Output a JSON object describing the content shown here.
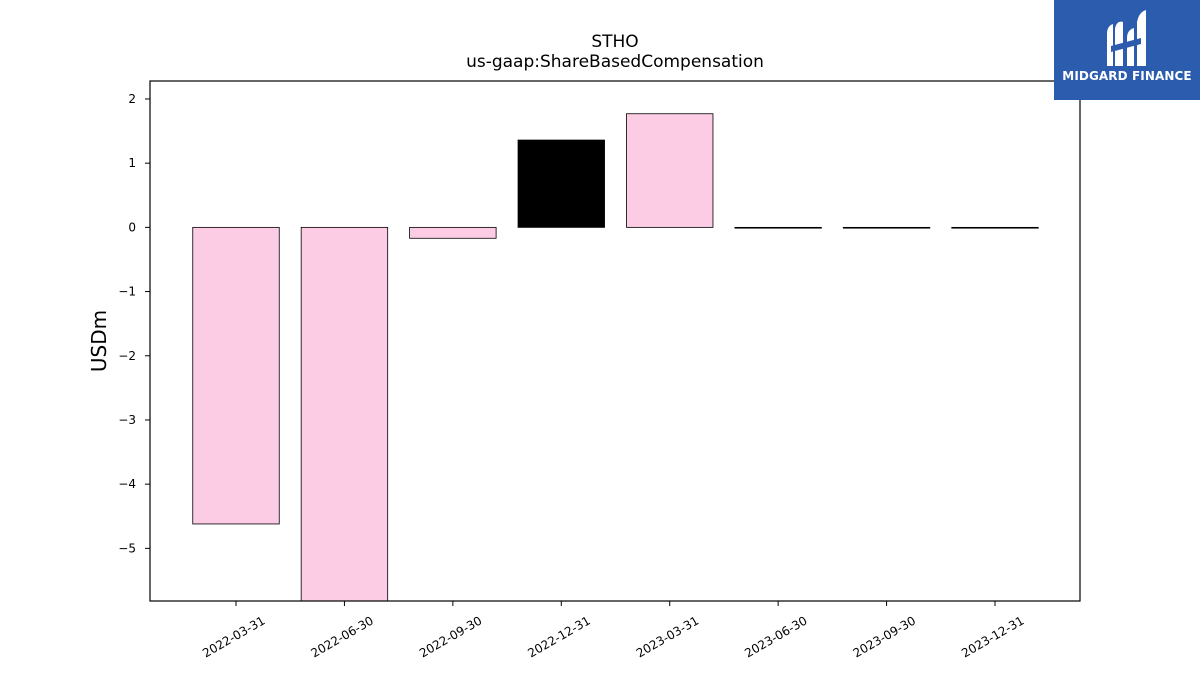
{
  "chart_data": {
    "type": "bar",
    "title": "STHO",
    "subtitle": "us-gaap:ShareBasedCompensation",
    "ylabel": "USDm",
    "xlabel": "",
    "categories": [
      "2022-03-31",
      "2022-06-30",
      "2022-09-30",
      "2022-12-31",
      "2023-03-31",
      "2023-06-30",
      "2023-09-30",
      "2023-12-31"
    ],
    "values": [
      -4.62,
      -5.82,
      -0.17,
      1.36,
      1.77,
      0.0,
      0.0,
      0.0
    ],
    "bar_colors": [
      "#fccce4",
      "#fccce4",
      "#fccce4",
      "#000000",
      "#fccce4",
      "#fccce4",
      "#fccce4",
      "#fccce4"
    ],
    "ylim": [
      -5.82,
      2.28
    ],
    "yticks": [
      2,
      1,
      0,
      -1,
      -2,
      -3,
      -4,
      -5
    ],
    "ytick_labels": [
      "2",
      "1",
      "0",
      "−1",
      "−2",
      "−3",
      "−4",
      "−5"
    ],
    "grid": false,
    "legend": "none"
  },
  "logo": {
    "text": "MIDGARD FINANCE",
    "background": "#2b5cae",
    "icon": "midgard-logo-icon"
  }
}
